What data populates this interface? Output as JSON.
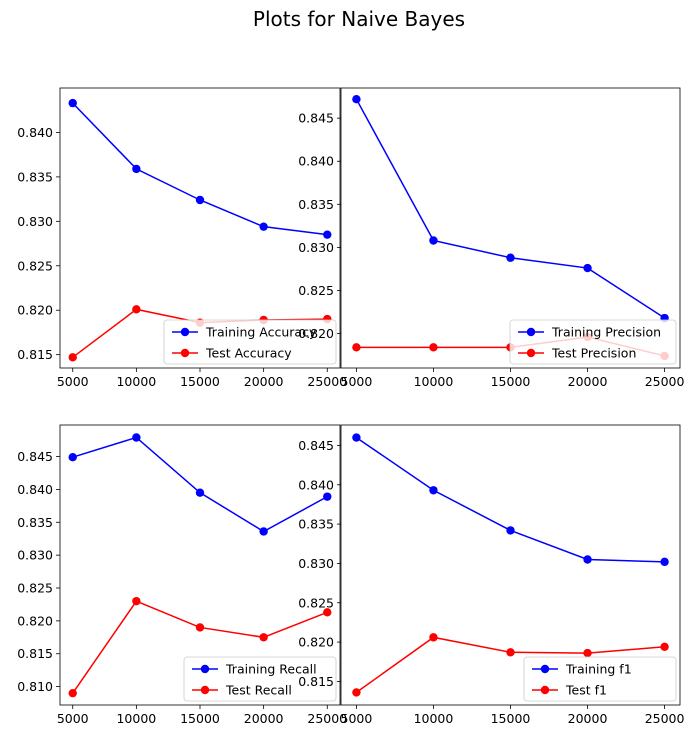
{
  "figure": {
    "title": "Plots for Naive Bayes"
  },
  "chart_data": [
    {
      "type": "line",
      "title": "",
      "xlabel": "",
      "ylabel": "",
      "x": [
        5000,
        10000,
        15000,
        20000,
        25000
      ],
      "xticks": [
        5000,
        10000,
        15000,
        20000,
        25000
      ],
      "xlim": [
        4000,
        26000
      ],
      "ylim": [
        0.8135,
        0.845
      ],
      "yticks": [
        0.815,
        0.82,
        0.825,
        0.83,
        0.835,
        0.84
      ],
      "series": [
        {
          "name": "Training Accuracy",
          "color": "#0000ff",
          "values": [
            0.8433,
            0.8359,
            0.8324,
            0.8294,
            0.8285
          ]
        },
        {
          "name": "Test Accuracy",
          "color": "#ff0000",
          "values": [
            0.8147,
            0.8201,
            0.8186,
            0.8189,
            0.819
          ]
        }
      ],
      "legend": "lower-right",
      "grid": false
    },
    {
      "type": "line",
      "title": "",
      "xlabel": "",
      "ylabel": "",
      "x": [
        5000,
        10000,
        15000,
        20000,
        25000
      ],
      "xticks": [
        5000,
        10000,
        15000,
        20000,
        25000
      ],
      "xlim": [
        4000,
        26000
      ],
      "ylim": [
        0.816,
        0.8485
      ],
      "yticks": [
        0.82,
        0.825,
        0.83,
        0.835,
        0.84,
        0.845
      ],
      "series": [
        {
          "name": "Training Precision",
          "color": "#0000ff",
          "values": [
            0.8472,
            0.8308,
            0.8288,
            0.8276,
            0.8218
          ]
        },
        {
          "name": "Test Precision",
          "color": "#ff0000",
          "values": [
            0.8184,
            0.8184,
            0.8184,
            0.8196,
            0.8174
          ]
        }
      ],
      "legend": "lower-right",
      "grid": false
    },
    {
      "type": "line",
      "title": "",
      "xlabel": "",
      "ylabel": "",
      "x": [
        5000,
        10000,
        15000,
        20000,
        25000
      ],
      "xticks": [
        5000,
        10000,
        15000,
        20000,
        25000
      ],
      "xlim": [
        4000,
        26000
      ],
      "ylim": [
        0.8072,
        0.8498
      ],
      "yticks": [
        0.81,
        0.815,
        0.82,
        0.825,
        0.83,
        0.835,
        0.84,
        0.845
      ],
      "series": [
        {
          "name": "Training Recall",
          "color": "#0000ff",
          "values": [
            0.8449,
            0.8479,
            0.8395,
            0.8336,
            0.8389
          ]
        },
        {
          "name": "Test Recall",
          "color": "#ff0000",
          "values": [
            0.809,
            0.823,
            0.819,
            0.8175,
            0.8213
          ]
        }
      ],
      "legend": "lower-right",
      "grid": false
    },
    {
      "type": "line",
      "title": "",
      "xlabel": "",
      "ylabel": "",
      "x": [
        5000,
        10000,
        15000,
        20000,
        25000
      ],
      "xticks": [
        5000,
        10000,
        15000,
        20000,
        25000
      ],
      "xlim": [
        4000,
        26000
      ],
      "ylim": [
        0.812,
        0.8476
      ],
      "yticks": [
        0.815,
        0.82,
        0.825,
        0.83,
        0.835,
        0.84,
        0.845
      ],
      "series": [
        {
          "name": "Training f1",
          "color": "#0000ff",
          "values": [
            0.846,
            0.8393,
            0.8342,
            0.8305,
            0.8302
          ]
        },
        {
          "name": "Test f1",
          "color": "#ff0000",
          "values": [
            0.8136,
            0.8206,
            0.8187,
            0.8186,
            0.8194
          ]
        }
      ],
      "legend": "lower-right",
      "grid": false
    }
  ]
}
